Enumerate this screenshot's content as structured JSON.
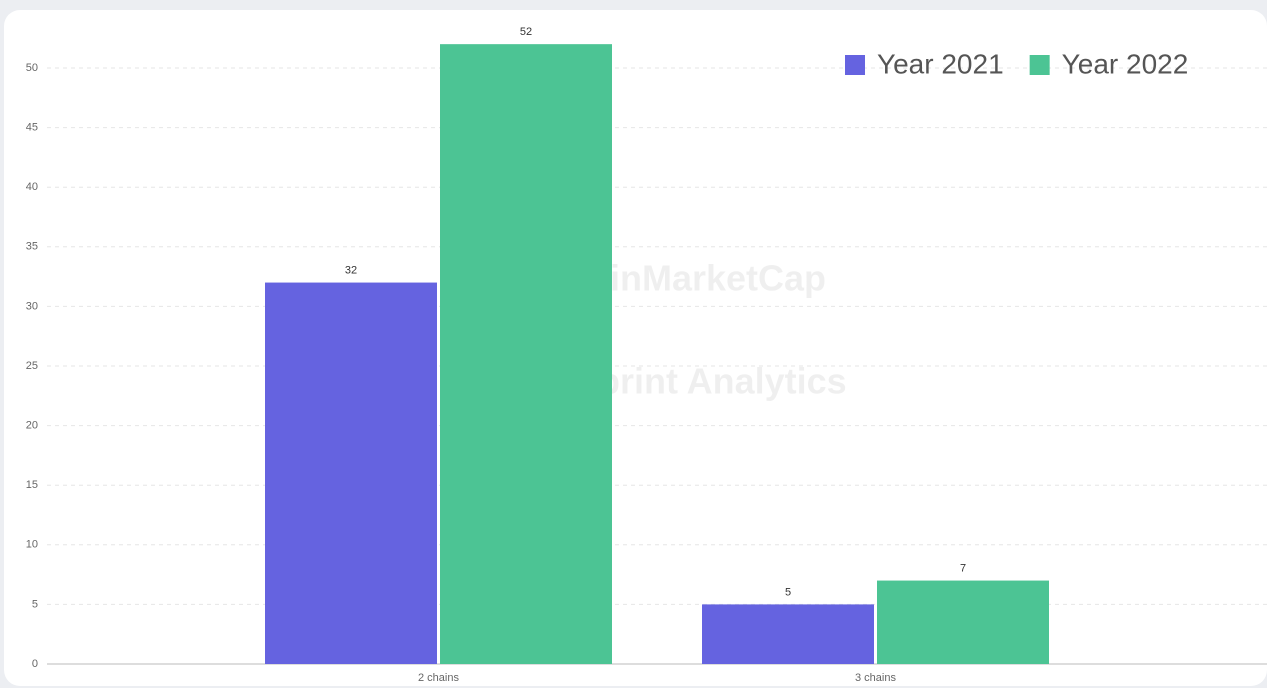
{
  "chart_data": {
    "type": "bar",
    "categories": [
      "2 chains",
      "3 chains"
    ],
    "series": [
      {
        "name": "Year 2021",
        "color": "#6563e0",
        "values": [
          32,
          5
        ]
      },
      {
        "name": "Year 2022",
        "color": "#4cc494",
        "values": [
          52,
          7
        ]
      }
    ],
    "ylim": [
      0,
      55
    ],
    "yticks": [
      0,
      5,
      10,
      15,
      20,
      25,
      30,
      35,
      40,
      45,
      50
    ],
    "grid": true,
    "legend": "top-right"
  },
  "watermarks": [
    "CoinMarketCap",
    "Footprint Analytics"
  ]
}
